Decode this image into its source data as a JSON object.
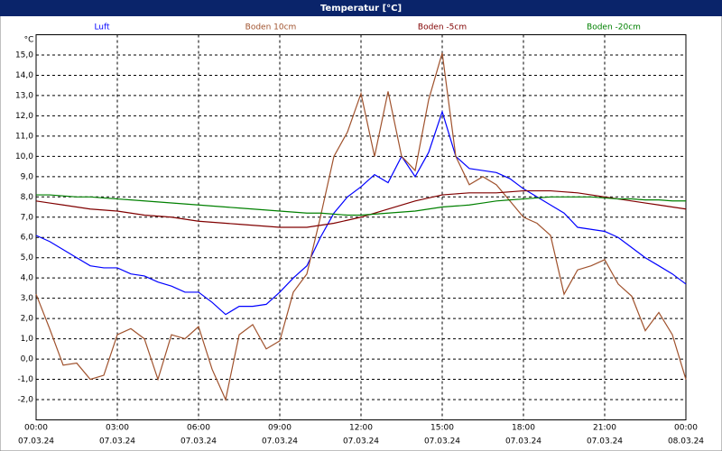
{
  "chart_data": {
    "type": "line",
    "title": "Temperatur [°C]",
    "y_unit": "°C",
    "x": [
      0,
      0.5,
      1,
      1.5,
      2,
      2.5,
      3,
      3.5,
      4,
      4.5,
      5,
      5.5,
      6,
      6.5,
      7,
      7.5,
      8,
      8.5,
      9,
      9.5,
      10,
      10.5,
      11,
      11.5,
      12,
      12.5,
      13,
      13.5,
      14,
      14.5,
      15,
      15.5,
      16,
      16.5,
      17,
      17.5,
      18,
      18.5,
      19,
      19.5,
      20,
      20.5,
      21,
      21.5,
      22,
      22.5,
      23,
      23.5,
      24
    ],
    "xlim": [
      0,
      24
    ],
    "xticks": [
      {
        "value": 0,
        "label": "00:00"
      },
      {
        "value": 3,
        "label": "03:00"
      },
      {
        "value": 6,
        "label": "06:00"
      },
      {
        "value": 9,
        "label": "09:00"
      },
      {
        "value": 12,
        "label": "12:00"
      },
      {
        "value": 15,
        "label": "15:00"
      },
      {
        "value": 18,
        "label": "18:00"
      },
      {
        "value": 21,
        "label": "21:00"
      },
      {
        "value": 24,
        "label": "00:00"
      }
    ],
    "xtick_dates": [
      "07.03.24",
      "07.03.24",
      "07.03.24",
      "07.03.24",
      "07.03.24",
      "07.03.24",
      "07.03.24",
      "07.03.24",
      "08.03.24"
    ],
    "ylim": [
      -3,
      16
    ],
    "yticks": [
      {
        "value": -2,
        "label": "-2,0"
      },
      {
        "value": -1,
        "label": "-1,0"
      },
      {
        "value": 0,
        "label": "0,0"
      },
      {
        "value": 1,
        "label": "1,0"
      },
      {
        "value": 2,
        "label": "2,0"
      },
      {
        "value": 3,
        "label": "3,0"
      },
      {
        "value": 4,
        "label": "4,0"
      },
      {
        "value": 5,
        "label": "5,0"
      },
      {
        "value": 6,
        "label": "6,0"
      },
      {
        "value": 7,
        "label": "7,0"
      },
      {
        "value": 8,
        "label": "8,0"
      },
      {
        "value": 9,
        "label": "9,0"
      },
      {
        "value": 10,
        "label": "10,0"
      },
      {
        "value": 11,
        "label": "11,0"
      },
      {
        "value": 12,
        "label": "12,0"
      },
      {
        "value": 13,
        "label": "13,0"
      },
      {
        "value": 14,
        "label": "14,0"
      },
      {
        "value": 15,
        "label": "15,0"
      }
    ],
    "grid": true,
    "legend": "top",
    "series": [
      {
        "name": "Luft",
        "color": "#0000ff",
        "values": [
          6.1,
          5.8,
          5.4,
          5.0,
          4.6,
          4.5,
          4.5,
          4.2,
          4.1,
          3.8,
          3.6,
          3.3,
          3.3,
          2.8,
          2.2,
          2.6,
          2.6,
          2.7,
          3.3,
          4.0,
          4.6,
          6.0,
          7.2,
          8.0,
          8.5,
          9.1,
          8.7,
          10.0,
          9.0,
          10.2,
          12.2,
          10.0,
          9.4,
          9.3,
          9.2,
          8.9,
          8.4,
          8.0,
          7.6,
          7.2,
          6.5,
          6.4,
          6.3,
          6.0,
          5.5,
          5.0,
          4.6,
          4.2,
          3.7
        ]
      },
      {
        "name": "Boden 10cm",
        "color": "#a0522d",
        "values": [
          3.2,
          1.5,
          -0.3,
          -0.2,
          -1.0,
          -0.8,
          1.2,
          1.5,
          1.0,
          -1.0,
          1.2,
          1.0,
          1.6,
          -0.5,
          -2.0,
          1.2,
          1.7,
          0.5,
          0.9,
          3.3,
          4.2,
          7.0,
          10.0,
          11.2,
          13.1,
          10.0,
          13.2,
          10.0,
          9.3,
          12.8,
          15.1,
          10.0,
          8.6,
          9.0,
          8.6,
          7.8,
          7.0,
          6.7,
          6.1,
          3.2,
          4.4,
          4.6,
          4.9,
          3.7,
          3.1,
          1.4,
          2.3,
          1.2,
          -1.0
        ]
      },
      {
        "name": "Boden -5cm",
        "color": "#800000",
        "values": [
          7.8,
          7.7,
          7.6,
          7.5,
          7.4,
          7.35,
          7.3,
          7.2,
          7.1,
          7.05,
          7.0,
          6.9,
          6.8,
          6.75,
          6.7,
          6.65,
          6.6,
          6.55,
          6.5,
          6.5,
          6.5,
          6.6,
          6.7,
          6.85,
          7.0,
          7.2,
          7.4,
          7.6,
          7.8,
          7.95,
          8.1,
          8.15,
          8.2,
          8.2,
          8.2,
          8.25,
          8.3,
          8.3,
          8.3,
          8.25,
          8.2,
          8.1,
          8.0,
          7.9,
          7.8,
          7.7,
          7.6,
          7.5,
          7.4
        ]
      },
      {
        "name": "Boden -20cm",
        "color": "#008000",
        "values": [
          8.1,
          8.1,
          8.05,
          8.0,
          8.0,
          7.95,
          7.9,
          7.85,
          7.8,
          7.75,
          7.7,
          7.65,
          7.6,
          7.55,
          7.5,
          7.45,
          7.4,
          7.35,
          7.3,
          7.25,
          7.2,
          7.2,
          7.15,
          7.1,
          7.1,
          7.15,
          7.2,
          7.25,
          7.3,
          7.4,
          7.5,
          7.55,
          7.6,
          7.7,
          7.8,
          7.85,
          7.9,
          7.95,
          8.0,
          8.0,
          8.0,
          8.0,
          7.95,
          7.9,
          7.9,
          7.85,
          7.85,
          7.8,
          7.8
        ]
      }
    ]
  }
}
